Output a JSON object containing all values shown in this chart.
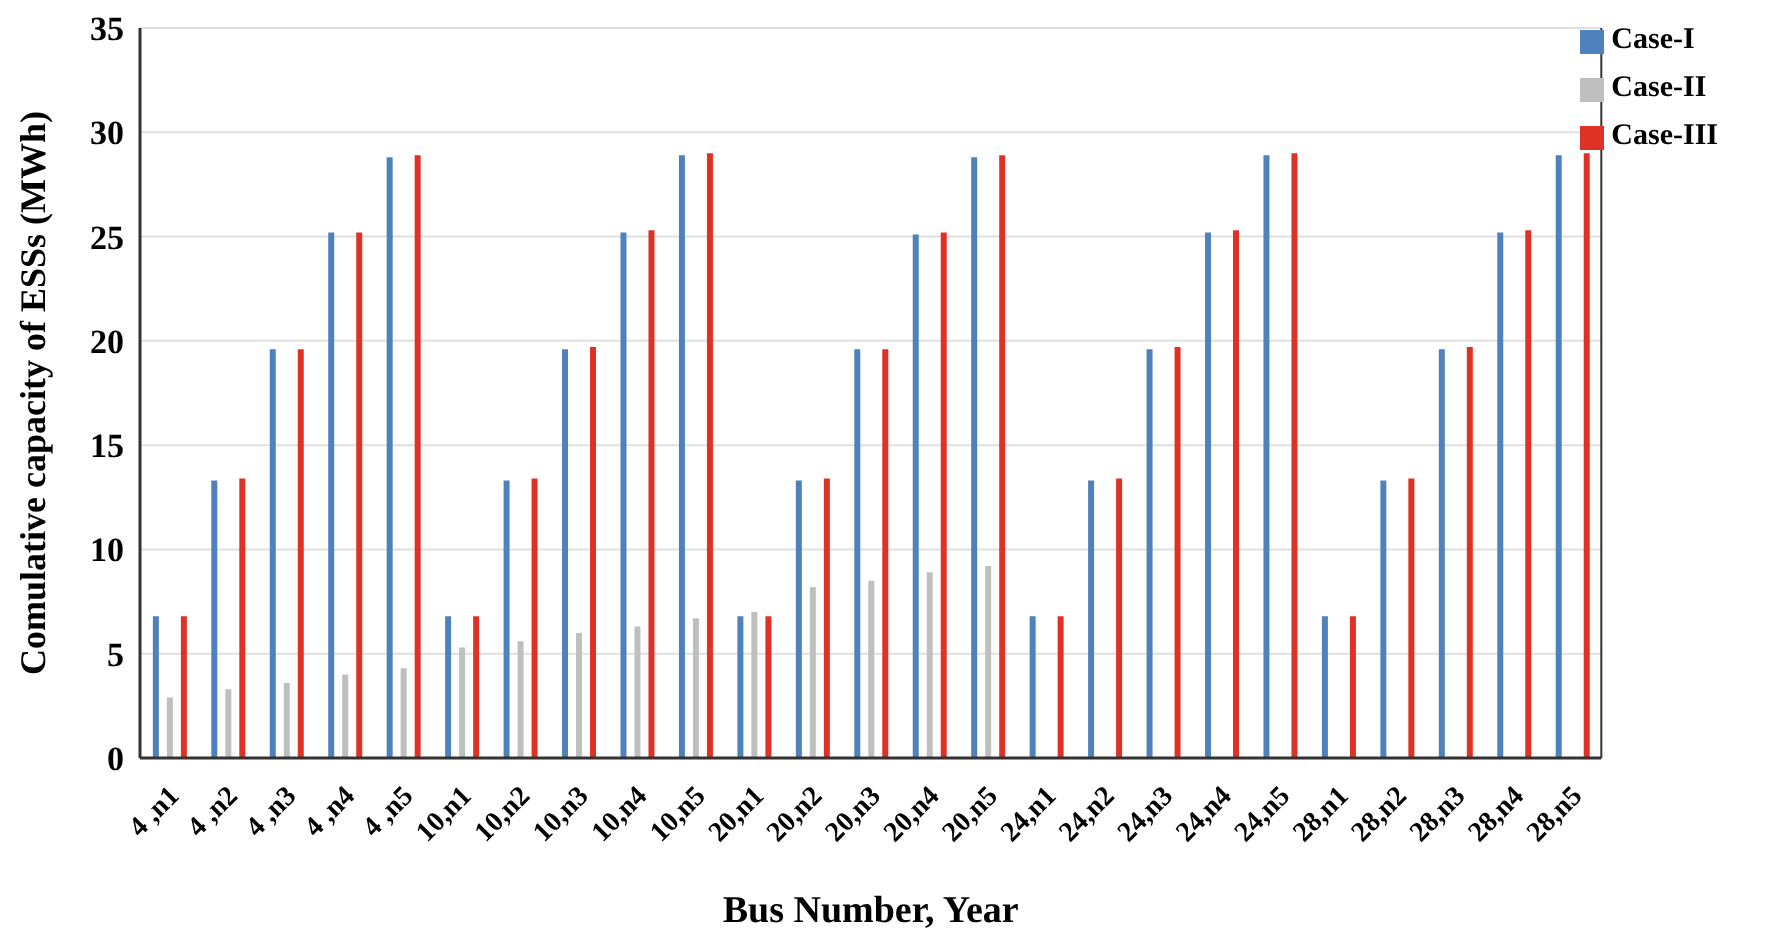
{
  "chart_data": {
    "type": "bar",
    "xlabel": "Bus Number, Year",
    "ylabel": "Comulative capacity of ESSs (MWh)",
    "categories": [
      "4 ,n1",
      "4 ,n2",
      "4 ,n3",
      "4 ,n4",
      "4 ,n5",
      "10,n1",
      "10,n2",
      "10,n3",
      "10,n4",
      "10,n5",
      "20,n1",
      "20,n2",
      "20,n3",
      "20,n4",
      "20,n5",
      "24,n1",
      "24,n2",
      "24,n3",
      "24,n4",
      "24,n5",
      "28,n1",
      "28,n2",
      "28,n3",
      "28,n4",
      "28,n5"
    ],
    "series": [
      {
        "name": "Case-I",
        "color": "#4f81bd",
        "values": [
          6.8,
          13.3,
          19.6,
          25.2,
          28.8,
          6.8,
          13.3,
          19.6,
          25.2,
          28.9,
          6.8,
          13.3,
          19.6,
          25.1,
          28.8,
          6.8,
          13.3,
          19.6,
          25.2,
          28.9,
          6.8,
          13.3,
          19.6,
          25.2,
          28.9
        ]
      },
      {
        "name": "Case-II",
        "color": "#bfbfbf",
        "values": [
          2.9,
          3.3,
          3.6,
          4.0,
          4.3,
          5.3,
          5.6,
          6.0,
          6.3,
          6.7,
          7.0,
          8.2,
          8.5,
          8.9,
          9.2,
          null,
          null,
          null,
          null,
          null,
          null,
          null,
          null,
          null,
          null
        ]
      },
      {
        "name": "Case-III",
        "color": "#e03127",
        "values": [
          6.8,
          13.4,
          19.6,
          25.2,
          28.9,
          6.8,
          13.4,
          19.7,
          25.3,
          29.0,
          6.8,
          13.4,
          19.6,
          25.2,
          28.9,
          6.8,
          13.4,
          19.7,
          25.3,
          29.0,
          6.8,
          13.4,
          19.7,
          25.3,
          29.0
        ]
      }
    ],
    "ylim": [
      0,
      35
    ],
    "yticks": [
      0,
      5,
      10,
      15,
      20,
      25,
      30,
      35
    ],
    "grid": "y",
    "legend": "top right"
  }
}
